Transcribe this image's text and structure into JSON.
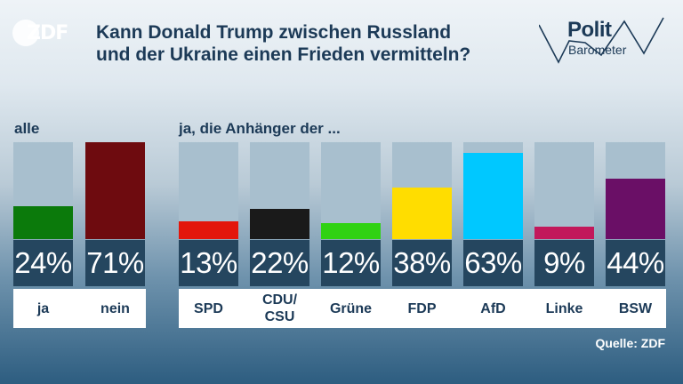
{
  "logos": {
    "zdf": "ZDF",
    "politbarometer_top": "Polit",
    "politbarometer_bottom": "Barometer"
  },
  "title_lines": [
    "Kann Donald Trump zwischen Russland",
    "und der Ukraine einen Frieden vermitteln?"
  ],
  "section_all": "alle",
  "section_parties": "ja, die Anhänger der ...",
  "source": "Quelle: ZDF",
  "colors": {
    "ja": "#0b7a0b",
    "nein": "#6e0b0f",
    "SPD": "#e3160b",
    "CDU/CSU": "#1a1a1a",
    "Grüne": "#30d213",
    "FDP": "#ffdd00",
    "AfD": "#00c8ff",
    "Linke": "#c2185b",
    "BSW": "#6a0f66"
  },
  "chart_data": {
    "type": "bar",
    "title": "Kann Donald Trump zwischen Russland und der Ukraine einen Frieden vermitteln?",
    "unit": "%",
    "ylim": [
      0,
      71
    ],
    "groups": [
      {
        "label": "alle",
        "categories": [
          "ja",
          "nein"
        ],
        "values": [
          24,
          71
        ]
      },
      {
        "label": "ja, die Anhänger der ...",
        "categories": [
          "SPD",
          "CDU/\nCSU",
          "Grüne",
          "FDP",
          "AfD",
          "Linke",
          "BSW"
        ],
        "values": [
          13,
          22,
          12,
          38,
          63,
          9,
          44
        ]
      }
    ],
    "value_labels": [
      "24%",
      "71%",
      "13%",
      "22%",
      "12%",
      "38%",
      "63%",
      "9%",
      "44%"
    ]
  }
}
